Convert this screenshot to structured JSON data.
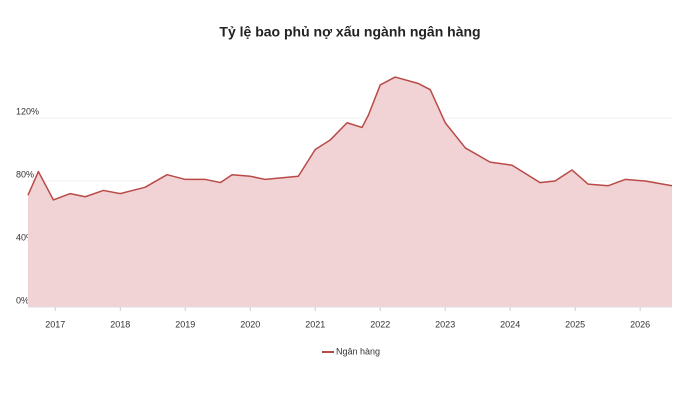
{
  "chart_data": {
    "type": "area",
    "title": "Tỷ lệ bao phủ nợ xấu ngành ngân hàng",
    "x": [
      2016.58,
      2016.74,
      2016.97,
      2017.23,
      2017.46,
      2017.74,
      2018.0,
      2018.38,
      2018.72,
      2019.0,
      2019.31,
      2019.54,
      2019.72,
      2020.0,
      2020.23,
      2020.74,
      2021.0,
      2021.23,
      2021.49,
      2021.72,
      2021.82,
      2022.0,
      2022.23,
      2022.58,
      2022.77,
      2023.0,
      2023.31,
      2023.69,
      2024.03,
      2024.46,
      2024.69,
      2024.95,
      2025.2,
      2025.51,
      2025.77,
      2026.08,
      2026.49
    ],
    "series": [
      {
        "name": "Ngân hàng",
        "color": "#b94a48",
        "fill": "#f2d3d5",
        "values": [
          71,
          86,
          68,
          72,
          70,
          74,
          72,
          76,
          84,
          81,
          81,
          79,
          84,
          83,
          81,
          83,
          100,
          106,
          117,
          114,
          122,
          141,
          146,
          142,
          138,
          117,
          101,
          92,
          90,
          79,
          80,
          87,
          78,
          77,
          81,
          80,
          77
        ]
      }
    ],
    "xlim": [
      2016.58,
      2026.49
    ],
    "xticks": [
      2017,
      2018,
      2019,
      2020,
      2021,
      2022,
      2023,
      2024,
      2025,
      2026
    ],
    "ylim": [
      0,
      160
    ],
    "yticks": [
      {
        "value": 0,
        "label": "0%"
      },
      {
        "value": 40,
        "label": "40%"
      },
      {
        "value": 80,
        "label": "80%"
      },
      {
        "value": 120,
        "label": "120%"
      }
    ],
    "grid": true,
    "legend": "bottom"
  }
}
